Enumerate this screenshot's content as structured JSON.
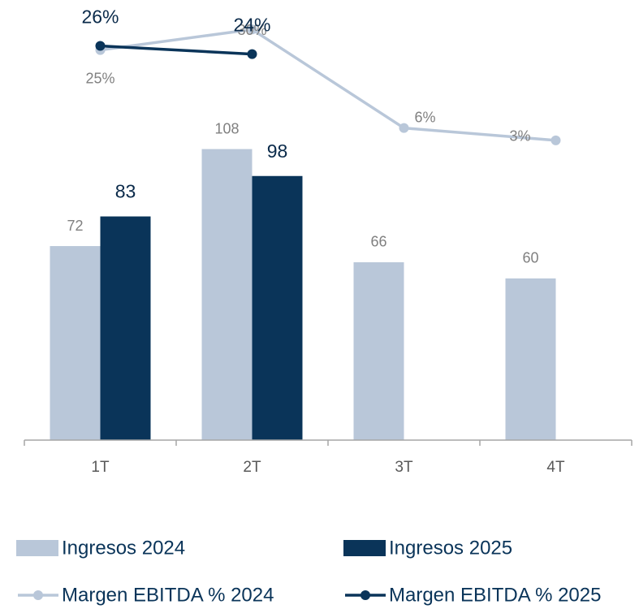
{
  "chart_data": {
    "type": "bar",
    "categories": [
      "1T",
      "2T",
      "3T",
      "4T"
    ],
    "ylim": [
      0,
      160
    ],
    "y2lim": [
      -70,
      35
    ],
    "series": [
      {
        "name": "Ingresos 2024",
        "type": "bar",
        "color": "#b9c7d9",
        "values": [
          72,
          108,
          66,
          60
        ]
      },
      {
        "name": "Ingresos 2025",
        "type": "bar",
        "color": "#0a3459",
        "values": [
          83,
          98,
          null,
          null
        ]
      },
      {
        "name": "Margen EBITDA % 2024",
        "type": "line",
        "axis": "y2",
        "color": "#b9c7d9",
        "values": [
          25,
          30,
          6,
          3
        ],
        "value_labels": [
          "25%",
          "30%",
          "6%",
          "3%"
        ]
      },
      {
        "name": "Margen EBITDA % 2025",
        "type": "line",
        "axis": "y2",
        "color": "#0a3459",
        "values": [
          26,
          24,
          null,
          null
        ],
        "value_labels": [
          "26%",
          "24%",
          null,
          null
        ]
      }
    ]
  }
}
